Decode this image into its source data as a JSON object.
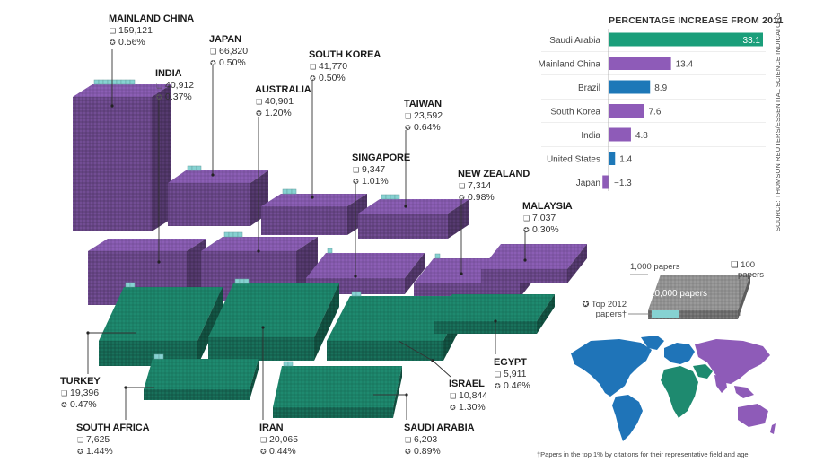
{
  "colors": {
    "asia": "#8b5eb5",
    "other": "#1e8a6f",
    "highlight": "#86d2d2",
    "legend_block": "#9a9a9a",
    "bar_saudi": "#1a9e7a",
    "bar_asia": "#8e5bb8",
    "bar_brazil": "#1d78b8",
    "bar_us": "#1d78b8",
    "bar_japan": "#8e5bb8"
  },
  "countries": [
    {
      "id": "mainland-china",
      "name": "MAINLAND CHINA",
      "papers": "159,121",
      "top": "0.56%"
    },
    {
      "id": "japan",
      "name": "JAPAN",
      "papers": "66,820",
      "top": "0.50%"
    },
    {
      "id": "south-korea",
      "name": "SOUTH KOREA",
      "papers": "41,770",
      "top": "0.50%"
    },
    {
      "id": "india",
      "name": "INDIA",
      "papers": "40,912",
      "top": "0.37%"
    },
    {
      "id": "australia",
      "name": "AUSTRALIA",
      "papers": "40,901",
      "top": "1.20%"
    },
    {
      "id": "taiwan",
      "name": "TAIWAN",
      "papers": "23,592",
      "top": "0.64%"
    },
    {
      "id": "singapore",
      "name": "SINGAPORE",
      "papers": "9,347",
      "top": "1.01%"
    },
    {
      "id": "new-zealand",
      "name": "NEW ZEALAND",
      "papers": "7,314",
      "top": "0.98%"
    },
    {
      "id": "malaysia",
      "name": "MALAYSIA",
      "papers": "7,037",
      "top": "0.30%"
    },
    {
      "id": "turkey",
      "name": "TURKEY",
      "papers": "19,396",
      "top": "0.47%"
    },
    {
      "id": "egypt",
      "name": "EGYPT",
      "papers": "5,911",
      "top": "0.46%"
    },
    {
      "id": "israel",
      "name": "ISRAEL",
      "papers": "10,844",
      "top": "1.30%"
    },
    {
      "id": "south-africa",
      "name": "SOUTH AFRICA",
      "papers": "7,625",
      "top": "1.44%"
    },
    {
      "id": "iran",
      "name": "IRAN",
      "papers": "20,065",
      "top": "0.44%"
    },
    {
      "id": "saudi-arabia",
      "name": "SAUDI ARABIA",
      "papers": "6,203",
      "top": "0.89%"
    }
  ],
  "chart_data": {
    "type": "bar",
    "title": "PERCENTAGE INCREASE FROM 2011",
    "categories": [
      "Saudi Arabia",
      "Mainland China",
      "Brazil",
      "South Korea",
      "India",
      "United States",
      "Japan"
    ],
    "values": [
      33.1,
      13.4,
      8.9,
      7.6,
      4.8,
      1.4,
      -1.3
    ],
    "value_labels": [
      "33.1",
      "13.4",
      "8.9",
      "7.6",
      "4.8",
      "1.4",
      "−1.3"
    ],
    "orientation": "horizontal",
    "grid": false
  },
  "legend": {
    "thousand": "1,000 papers",
    "hundred_1": "100",
    "hundred_2": "papers",
    "ten_thousand": "10,000 papers",
    "top_1": "Top 2012",
    "top_2": "papers†"
  },
  "source": "SOURCE: THOMSON REUTERS/ESSENTIAL SCIENCE INDICATORS",
  "footnote": "†Papers in the top 1% by citations for their representative field and age."
}
